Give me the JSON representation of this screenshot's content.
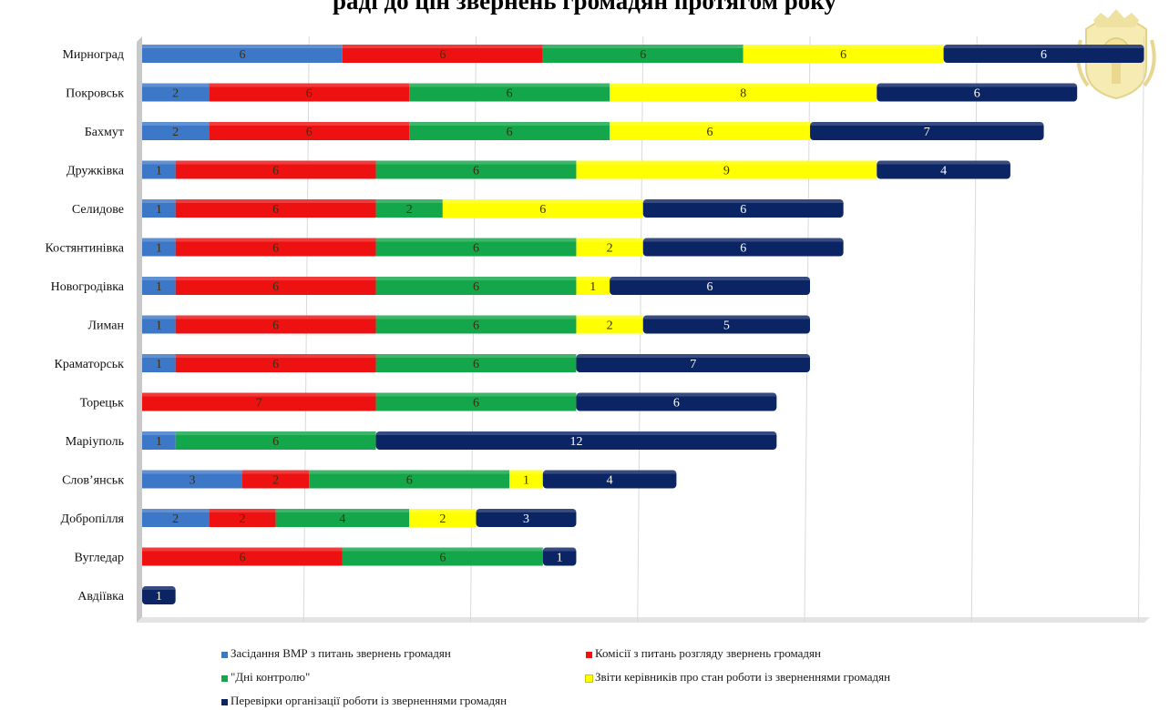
{
  "title": "раді до цін звернень громадян протягом року",
  "chart_data": {
    "type": "bar",
    "orientation": "horizontal",
    "stacked": true,
    "categories": [
      "Мирноград",
      "Покровськ",
      "Бахмут",
      "Дружківка",
      "Селидове",
      "Костянтинівка",
      "Новогродівка",
      "Лиман",
      "Краматорськ",
      "Торецьк",
      "Маріуполь",
      "Слов’янськ",
      "Добропілля",
      "Вугледар",
      "Авдіївка"
    ],
    "series": [
      {
        "name": "Засідання ВМР з питань звернень громадян",
        "color": "#3d78c8",
        "values": [
          6,
          2,
          2,
          1,
          1,
          1,
          1,
          1,
          1,
          0,
          1,
          3,
          2,
          0,
          0
        ]
      },
      {
        "name": "Комісії з питань розгляду звернень громадян",
        "color": "#ee1111",
        "values": [
          6,
          6,
          6,
          6,
          6,
          6,
          6,
          6,
          6,
          7,
          0,
          2,
          2,
          6,
          0
        ]
      },
      {
        "name": "\"Дні контролю\"",
        "color": "#14a64a",
        "values": [
          6,
          6,
          6,
          6,
          2,
          6,
          6,
          6,
          6,
          6,
          6,
          6,
          4,
          6,
          0
        ]
      },
      {
        "name": "Звіти керівників про стан роботи із зверненнями громадян",
        "color": "#ffff00",
        "values": [
          6,
          8,
          6,
          9,
          6,
          2,
          1,
          2,
          0,
          0,
          0,
          1,
          2,
          0,
          0
        ]
      },
      {
        "name": "Перевірки організації роботи із зверненнями громадян",
        "color": "#0b2464",
        "values": [
          6,
          6,
          7,
          4,
          6,
          6,
          6,
          5,
          7,
          6,
          12,
          4,
          3,
          1,
          1
        ]
      }
    ],
    "xlim": [
      0,
      30
    ],
    "grid": true,
    "legend_position": "bottom"
  }
}
